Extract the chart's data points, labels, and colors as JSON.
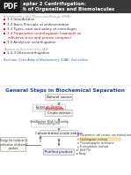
{
  "bg_color": "#ffffff",
  "pdf_badge_color": "#1a1a1a",
  "pdf_text_color": "#ffffff",
  "header_bg": "#3a3a3a",
  "header_title1": "apter 2 Centrifugation:",
  "header_title2": "h of Organelles and Biomolecules",
  "section1_label": "Biochemistry and Molecular Biology (BMB)",
  "section1_color": "#999999",
  "items": [
    {
      "text": "3.1 Introduction",
      "color": "#333333",
      "red": false
    },
    {
      "text": "3.2 Basic Principle of sedimentation",
      "color": "#333333",
      "red": false
    },
    {
      "text": "3.3 Types, care and safety of centrifuges",
      "color": "#333333",
      "red": false
    },
    {
      "text": "3.4 Preparative centrifugation (example on",
      "color": "#cc0000",
      "red": true
    },
    {
      "text": "    influenza virus and protein complex)",
      "color": "#cc0000",
      "red": false,
      "indent": true
    },
    {
      "text": "3.5 Analytical centrifugation",
      "color": "#333333",
      "red": false
    }
  ],
  "bullet_color": "#cc2222",
  "section2_label": "Analytical Biochemistry (AB)",
  "section2_color": "#999999",
  "item2_text": "3.4.3 Ultracentrifugation",
  "item2_color": "#333333",
  "ref_text": "Koolman, Color Atlas of Biochemistry (CAB), 2nd edition",
  "ref_color": "#3355bb",
  "diagram_title": "General Steps in Biochemical Separation",
  "diagram_title_color": "#2244aa",
  "arrow_color": "#555555",
  "box_fill": "#f5f5f0",
  "box_edge": "#aaaaaa",
  "highlight_pink": "#ffbbbb",
  "highlight_yellow": "#ffeeaa"
}
